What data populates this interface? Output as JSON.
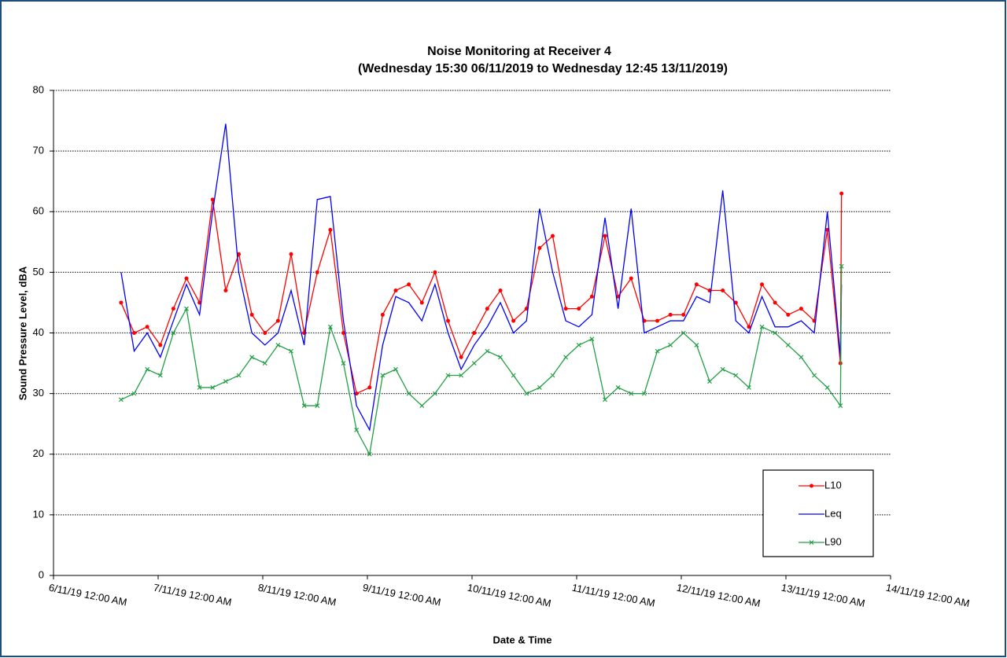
{
  "chart_data": {
    "type": "line",
    "title": "Noise Monitoring at Receiver 4",
    "subtitle": "(Wednesday 15:30 06/11/2019 to Wednesday 12:45 13/11/2019)",
    "x_label": "Date & Time",
    "y_label": "Sound Pressure Level, dBA",
    "x": [
      "2019-11-06 15:30",
      "2019-11-06 18:30",
      "2019-11-06 21:30",
      "2019-11-07 00:30",
      "2019-11-07 03:30",
      "2019-11-07 06:30",
      "2019-11-07 09:30",
      "2019-11-07 12:30",
      "2019-11-07 15:30",
      "2019-11-07 18:30",
      "2019-11-07 21:30",
      "2019-11-08 00:30",
      "2019-11-08 03:30",
      "2019-11-08 06:30",
      "2019-11-08 09:30",
      "2019-11-08 12:30",
      "2019-11-08 15:30",
      "2019-11-08 18:30",
      "2019-11-08 21:30",
      "2019-11-09 00:30",
      "2019-11-09 03:30",
      "2019-11-09 06:30",
      "2019-11-09 09:30",
      "2019-11-09 12:30",
      "2019-11-09 15:30",
      "2019-11-09 18:30",
      "2019-11-09 21:30",
      "2019-11-10 00:30",
      "2019-11-10 03:30",
      "2019-11-10 06:30",
      "2019-11-10 09:30",
      "2019-11-10 12:30",
      "2019-11-10 15:30",
      "2019-11-10 18:30",
      "2019-11-10 21:30",
      "2019-11-11 00:30",
      "2019-11-11 03:30",
      "2019-11-11 06:30",
      "2019-11-11 09:30",
      "2019-11-11 12:30",
      "2019-11-11 15:30",
      "2019-11-11 18:30",
      "2019-11-11 21:30",
      "2019-11-12 00:30",
      "2019-11-12 03:30",
      "2019-11-12 06:30",
      "2019-11-12 09:30",
      "2019-11-12 12:30",
      "2019-11-12 15:30",
      "2019-11-12 18:30",
      "2019-11-12 21:30",
      "2019-11-13 00:30",
      "2019-11-13 03:30",
      "2019-11-13 06:30",
      "2019-11-13 09:30",
      "2019-11-13 12:30",
      "2019-11-13 12:45"
    ],
    "series": [
      {
        "name": "L10",
        "color": "#ff0000",
        "marker": "circle",
        "values": [
          45,
          40,
          41,
          38,
          44,
          49,
          45,
          62,
          47,
          53,
          43,
          40,
          42,
          53,
          40,
          50,
          57,
          40,
          30,
          31,
          43,
          47,
          48,
          45,
          50,
          42,
          36,
          40,
          44,
          47,
          42,
          44,
          54,
          56,
          44,
          44,
          46,
          56,
          46,
          49,
          42,
          42,
          43,
          43,
          48,
          47,
          47,
          45,
          41,
          48,
          45,
          43,
          44,
          42,
          57,
          35,
          63
        ]
      },
      {
        "name": "Leq",
        "color": "#0000ff",
        "marker": "none",
        "values": [
          50,
          37,
          40,
          36,
          42,
          48,
          43,
          60,
          74.5,
          50,
          40,
          38,
          40,
          47,
          38,
          62,
          62.5,
          42,
          28,
          24,
          38,
          46,
          45,
          42,
          48,
          40,
          34,
          38,
          41,
          45,
          40,
          42,
          60.5,
          50,
          42,
          41,
          43,
          59,
          44,
          60.5,
          40,
          41,
          42,
          42,
          46,
          45,
          63.5,
          42,
          40,
          46,
          41,
          41,
          42,
          40,
          60,
          36,
          48
        ]
      },
      {
        "name": "L90",
        "color": "#22a045",
        "marker": "cross",
        "values": [
          29,
          30,
          34,
          33,
          40,
          44,
          31,
          31,
          32,
          33,
          36,
          35,
          38,
          37,
          28,
          28,
          41,
          35,
          24,
          20,
          33,
          34,
          30,
          28,
          30,
          33,
          33,
          35,
          37,
          36,
          33,
          30,
          31,
          33,
          36,
          38,
          39,
          29,
          31,
          30,
          30,
          37,
          38,
          40,
          38,
          32,
          34,
          33,
          31,
          41,
          40,
          38,
          36,
          33,
          31,
          28,
          51
        ]
      }
    ],
    "xlim": [
      "2019-11-06 00:00",
      "2019-11-14 00:00"
    ],
    "xticks": [
      {
        "value": "2019-11-06 00:00",
        "label": "6/11/19 12:00 AM"
      },
      {
        "value": "2019-11-07 00:00",
        "label": "7/11/19 12:00 AM"
      },
      {
        "value": "2019-11-08 00:00",
        "label": "8/11/19 12:00 AM"
      },
      {
        "value": "2019-11-09 00:00",
        "label": "9/11/19 12:00 AM"
      },
      {
        "value": "2019-11-10 00:00",
        "label": "10/11/19 12:00 AM"
      },
      {
        "value": "2019-11-11 00:00",
        "label": "11/11/19 12:00 AM"
      },
      {
        "value": "2019-11-12 00:00",
        "label": "12/11/19 12:00 AM"
      },
      {
        "value": "2019-11-13 00:00",
        "label": "13/11/19 12:00 AM"
      },
      {
        "value": "2019-11-14 00:00",
        "label": "14/11/19 12:00 AM"
      }
    ],
    "ylim": [
      0,
      80
    ],
    "yticks": [
      0,
      10,
      20,
      30,
      40,
      50,
      60,
      70,
      80
    ],
    "grid": true,
    "legend": "lower right"
  }
}
